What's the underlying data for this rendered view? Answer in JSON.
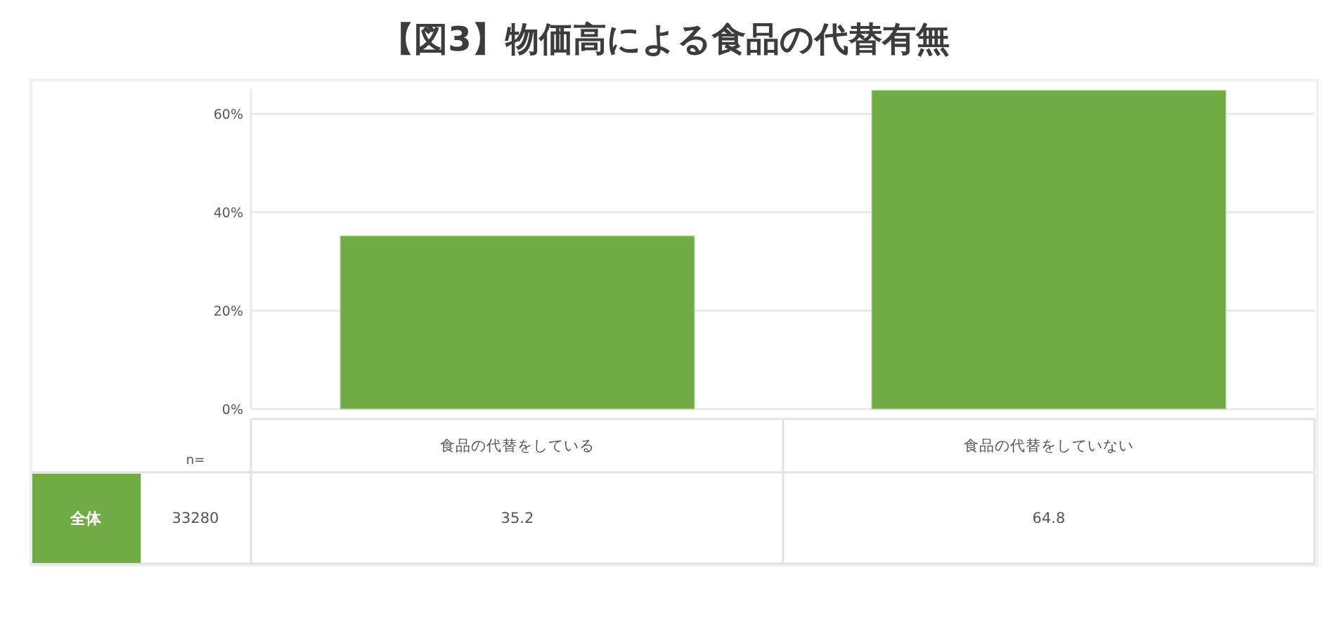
{
  "chart_data": {
    "type": "bar",
    "title": "【図3】物価高による食品の代替有無",
    "categories": [
      "食品の代替をしている",
      "食品の代替をしていない"
    ],
    "series": [
      {
        "name": "全体",
        "color": "#70ab46",
        "values": [
          35.2,
          64.8
        ]
      }
    ],
    "ylim": [
      0,
      65
    ],
    "yticks": [
      {
        "value": 0,
        "label": "0%"
      },
      {
        "value": 20,
        "label": "20%"
      },
      {
        "value": 40,
        "label": "40%"
      },
      {
        "value": 60,
        "label": "60%"
      }
    ],
    "grid": "y",
    "data_labels": true,
    "annotations": [
      "n=",
      "33280"
    ]
  }
}
